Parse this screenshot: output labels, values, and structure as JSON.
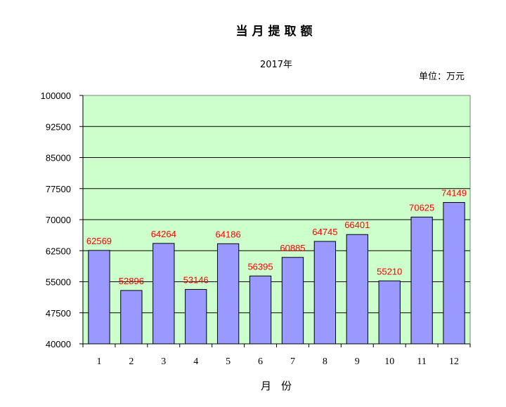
{
  "chart_data": {
    "type": "bar",
    "title": "当月提取额",
    "subtitle": "2017年",
    "unit_label": "单位：万元",
    "xlabel": "月份",
    "ylabel": "",
    "ylim": [
      40000,
      100000
    ],
    "yticks": [
      40000,
      47500,
      55000,
      62500,
      70000,
      77500,
      85000,
      92500,
      100000
    ],
    "categories": [
      "1",
      "2",
      "3",
      "4",
      "5",
      "6",
      "7",
      "8",
      "9",
      "10",
      "11",
      "12"
    ],
    "values": [
      62569,
      52896,
      64264,
      53146,
      64186,
      56395,
      60885,
      64745,
      66401,
      55210,
      70625,
      74149
    ],
    "grid": true,
    "legend": "none",
    "colors": {
      "plot_background": "#ccffcc",
      "bar_fill": "#9999ff",
      "bar_stroke": "#000000",
      "data_label": "#ff0000",
      "grid": "#000000"
    }
  }
}
